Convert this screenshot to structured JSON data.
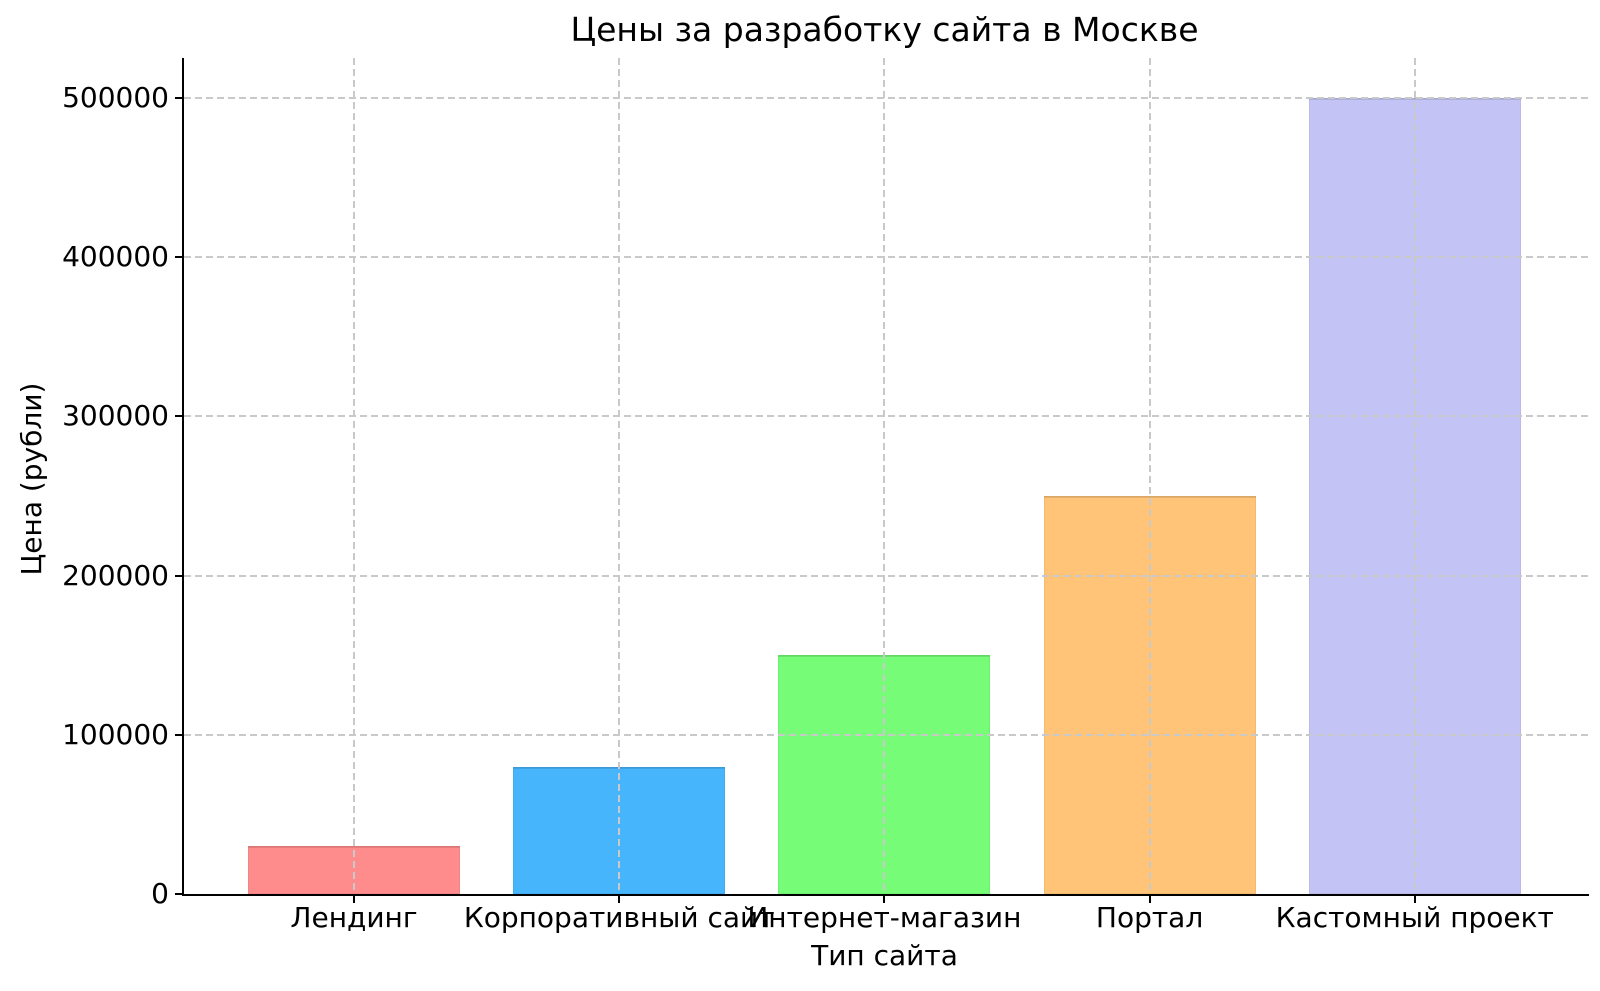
{
  "chart_data": {
    "type": "bar",
    "title": "Цены за разработку сайта в Москве",
    "xlabel": "Тип сайта",
    "ylabel": "Цена (рубли)",
    "categories": [
      "Лендинг",
      "Корпоративный сайт",
      "Интернет-магазин",
      "Портал",
      "Кастомный проект"
    ],
    "values": [
      30000,
      80000,
      150000,
      250000,
      500000
    ],
    "bar_colors": [
      "#ff8c8c",
      "#47b5fc",
      "#77fc77",
      "#ffc478",
      "#c3c3f5"
    ],
    "ylim": [
      0,
      525000
    ],
    "yticks": [
      0,
      100000,
      200000,
      300000,
      400000,
      500000
    ],
    "ytick_labels": [
      "0",
      "100000",
      "200000",
      "300000",
      "400000",
      "500000"
    ],
    "grid": "dashed",
    "grid_color": "#c9c9c9",
    "spine_color": "#000000",
    "text_color": "#000000",
    "background": "#ffffff",
    "legend": "none"
  }
}
